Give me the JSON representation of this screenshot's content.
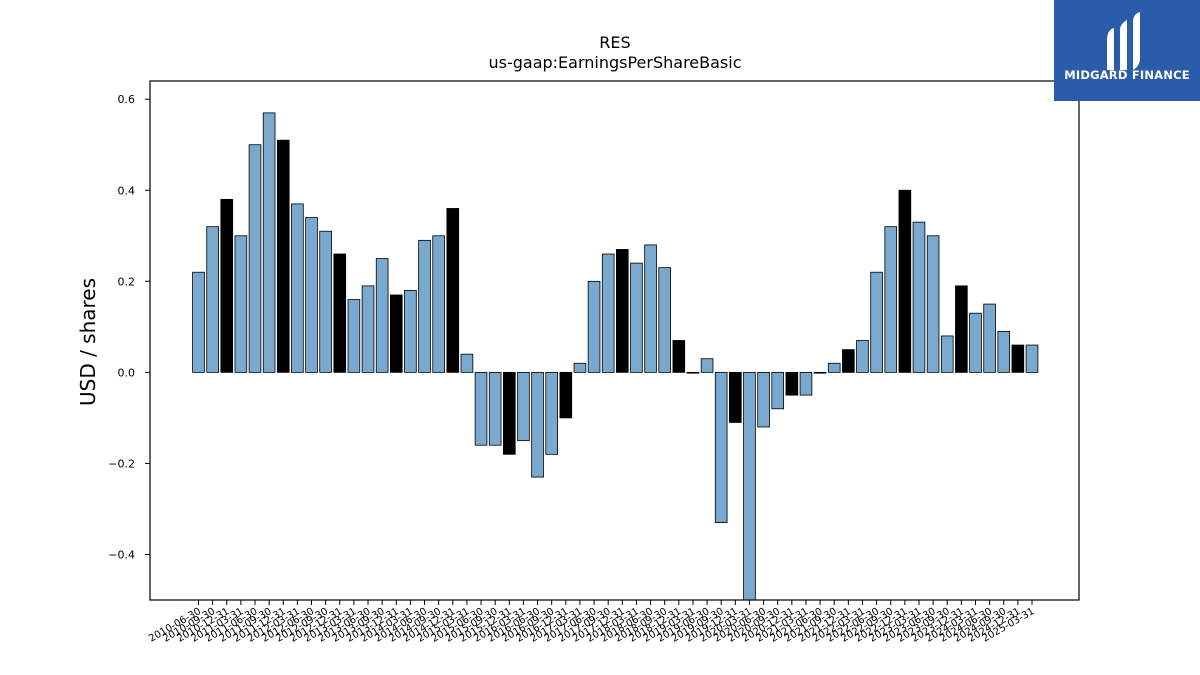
{
  "chart_data": {
    "type": "bar",
    "title": "RES",
    "subtitle": "us-gaap:EarningsPerShareBasic",
    "xlabel": "",
    "ylabel": "USD / shares",
    "ylim": [
      -0.5,
      0.64
    ],
    "yticks": [
      -0.4,
      -0.2,
      0.0,
      0.2,
      0.4,
      0.6
    ],
    "ytick_labels": [
      "−0.4",
      "−0.2",
      "0.0",
      "0.2",
      "0.4",
      "0.6"
    ],
    "grid": false,
    "colors": {
      "quarterly": "#7aa9d0",
      "annual": "#000000"
    },
    "categories": [
      "2010-06-30",
      "2010-09-30",
      "2010-12-31",
      "2011-03-31",
      "2011-06-30",
      "2011-09-30",
      "2011-12-31",
      "2012-03-31",
      "2012-06-30",
      "2012-09-30",
      "2012-12-31",
      "2013-03-31",
      "2013-06-30",
      "2013-09-30",
      "2013-12-31",
      "2014-03-31",
      "2014-06-30",
      "2014-09-30",
      "2014-12-31",
      "2015-03-31",
      "2015-06-30",
      "2015-09-30",
      "2015-12-31",
      "2016-03-31",
      "2016-06-30",
      "2016-09-30",
      "2016-12-31",
      "2017-03-31",
      "2017-06-30",
      "2017-09-30",
      "2017-12-31",
      "2018-03-31",
      "2018-06-30",
      "2018-09-30",
      "2018-12-31",
      "2019-03-31",
      "2019-06-30",
      "2019-09-30",
      "2019-12-31",
      "2020-03-31",
      "2020-06-30",
      "2020-09-30",
      "2020-12-31",
      "2021-03-31",
      "2021-06-30",
      "2021-09-30",
      "2021-12-31",
      "2022-03-31",
      "2022-06-30",
      "2022-09-30",
      "2022-12-31",
      "2023-03-31",
      "2023-06-30",
      "2023-09-30",
      "2023-12-31",
      "2024-03-31",
      "2024-06-30",
      "2024-09-30",
      "2024-12-31",
      "2025-03-31"
    ],
    "values": [
      0.22,
      0.32,
      0.38,
      0.3,
      0.5,
      0.57,
      0.51,
      0.37,
      0.34,
      0.31,
      0.26,
      0.16,
      0.19,
      0.25,
      0.17,
      0.18,
      0.29,
      0.3,
      0.36,
      0.04,
      -0.16,
      -0.16,
      -0.18,
      -0.15,
      -0.23,
      -0.18,
      -0.1,
      0.02,
      0.2,
      0.26,
      0.27,
      0.24,
      0.28,
      0.23,
      0.07,
      0.0,
      0.03,
      -0.33,
      -0.11,
      -0.5,
      -0.12,
      -0.08,
      -0.05,
      -0.05,
      0.0,
      0.02,
      0.05,
      0.07,
      0.22,
      0.32,
      0.4,
      0.33,
      0.3,
      0.08,
      0.19,
      0.13,
      0.15,
      0.09,
      0.06,
      0.06
    ],
    "annual": [
      false,
      false,
      true,
      false,
      false,
      false,
      true,
      false,
      false,
      false,
      true,
      false,
      false,
      false,
      true,
      false,
      false,
      false,
      true,
      false,
      false,
      false,
      true,
      false,
      false,
      false,
      true,
      false,
      false,
      false,
      true,
      false,
      false,
      false,
      true,
      false,
      false,
      false,
      true,
      false,
      false,
      false,
      true,
      false,
      false,
      false,
      true,
      false,
      false,
      false,
      true,
      false,
      false,
      false,
      true,
      false,
      false,
      false,
      true,
      false
    ]
  },
  "logo": {
    "text": "MIDGARD FINANCE",
    "icon": "midgard-m-logo-icon",
    "background": "#2a5caa"
  }
}
